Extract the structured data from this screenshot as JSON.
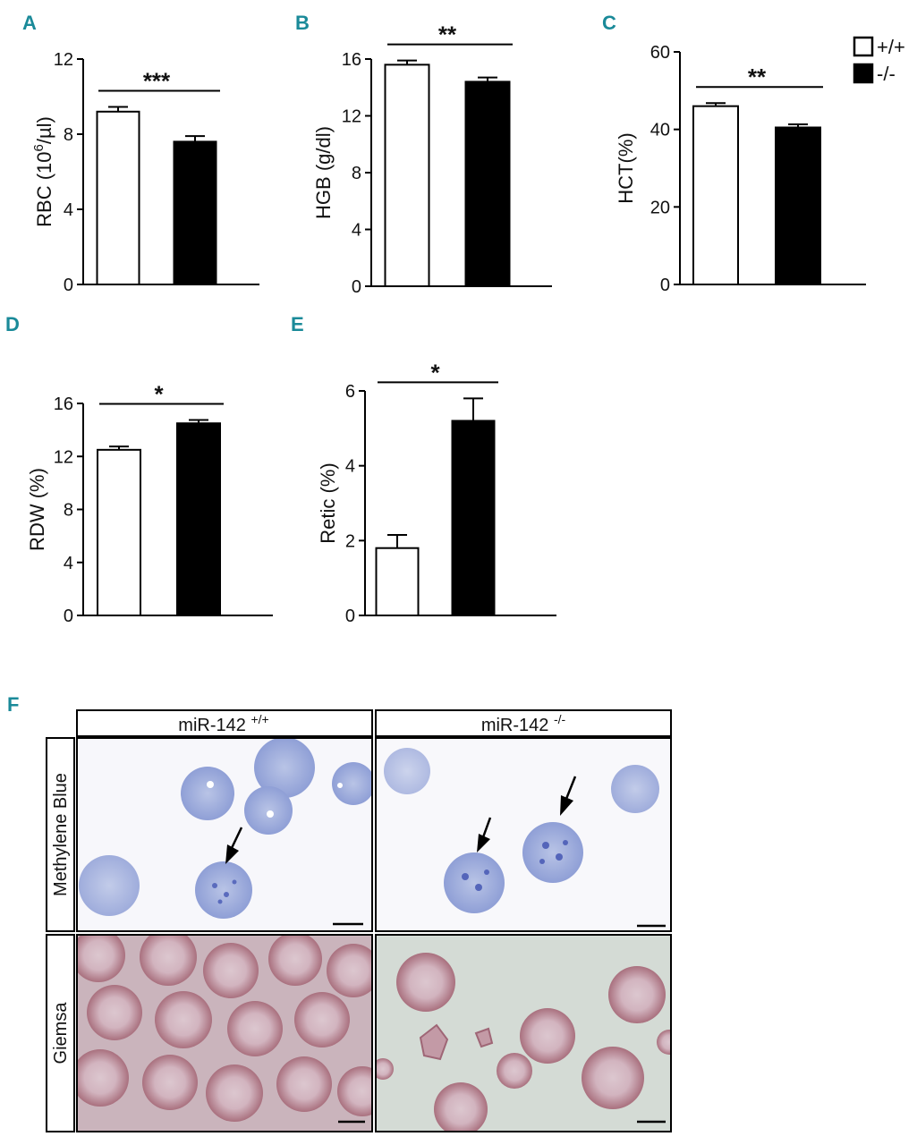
{
  "chart_data": [
    {
      "panel": "A",
      "type": "bar",
      "categories": [
        "+/+",
        "-/-"
      ],
      "values": [
        9.2,
        7.6
      ],
      "errors": [
        0.25,
        0.3
      ],
      "ylabel_main": "RBC (10",
      "ylabel_sup": "6",
      "ylabel_tail": "/µl)",
      "ylim": [
        0,
        12
      ],
      "yticks": [
        "0",
        "4",
        "8",
        "12"
      ],
      "significance": "***"
    },
    {
      "panel": "B",
      "type": "bar",
      "categories": [
        "+/+",
        "-/-"
      ],
      "values": [
        15.6,
        14.4
      ],
      "errors": [
        0.3,
        0.3
      ],
      "ylabel": "HGB (g/dl)",
      "ylim": [
        0,
        16
      ],
      "yticks": [
        "0",
        "4",
        "8",
        "12",
        "16"
      ],
      "significance": "**"
    },
    {
      "panel": "C",
      "type": "bar",
      "categories": [
        "+/+",
        "-/-"
      ],
      "values": [
        46,
        40.5
      ],
      "errors": [
        0.8,
        0.8
      ],
      "ylabel": "HCT(%)",
      "ylim": [
        0,
        60
      ],
      "yticks": [
        "0",
        "20",
        "40",
        "60"
      ],
      "significance": "**"
    },
    {
      "panel": "D",
      "type": "bar",
      "categories": [
        "+/+",
        "-/-"
      ],
      "values": [
        12.5,
        14.5
      ],
      "errors": [
        0.25,
        0.25
      ],
      "ylabel": "RDW (%)",
      "ylim": [
        0,
        16
      ],
      "yticks": [
        "0",
        "4",
        "8",
        "12",
        "16"
      ],
      "significance": "*"
    },
    {
      "panel": "E",
      "type": "bar",
      "categories": [
        "+/+",
        "-/-"
      ],
      "values": [
        1.8,
        5.2
      ],
      "errors": [
        0.35,
        0.6
      ],
      "ylabel": "Retic (%)",
      "ylim": [
        0,
        6
      ],
      "yticks": [
        "0",
        "2",
        "4",
        "6"
      ],
      "significance": "*"
    }
  ],
  "legend": {
    "items": [
      {
        "label": "+/+",
        "color": "#ffffff"
      },
      {
        "label": "-/-",
        "color": "#000000"
      }
    ]
  },
  "colors": {
    "wildtype": "#ffffff",
    "knockout": "#000000",
    "panel_letter": "#1a8a99"
  },
  "panel_f": {
    "letter": "F",
    "col_headers": [
      {
        "base": "miR-142 ",
        "sup": "+/+"
      },
      {
        "base": "miR-142 ",
        "sup": "-/-"
      }
    ],
    "row_labels": [
      "Methylene Blue",
      "Giemsa"
    ]
  }
}
